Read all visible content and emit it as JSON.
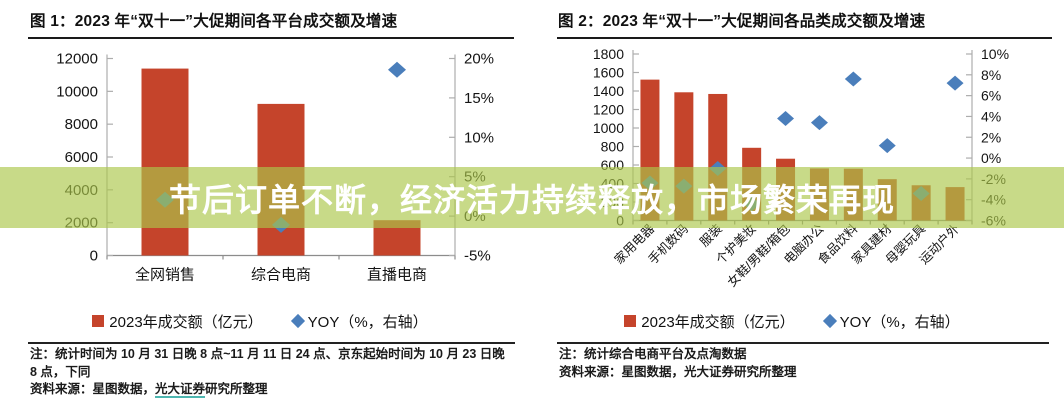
{
  "banner": {
    "text": "节后订单不断，经济活力持续释放，市场繁荣再现",
    "background_color": "#abc74a",
    "background_opacity": 0.66,
    "text_color": "#ffffff"
  },
  "figures": [
    {
      "note": "注：统计时间为 10 月 31 日晚 8 点~11 月 11 日 24 点、京东起始时间为 10 月 23 日晚 8 点，下同",
      "source_prefix": "资料来源：星图数据，",
      "source_underlined": "光大证券",
      "source_suffix": "研究所整理",
      "underline_color": "#4db6b0"
    },
    {
      "note": "注：统计综合电商平台及点淘数据",
      "source_prefix": "资料来源：星图数据，光大证券研究所整理",
      "source_underlined": "",
      "source_suffix": ""
    }
  ],
  "chart_data": [
    {
      "type": "bar",
      "title": "图 1：2023 年“双十一”大促期间各平台成交额及增速",
      "categories": [
        "全网销售",
        "综合电商",
        "直播电商"
      ],
      "series": [
        {
          "name": "2023年成交额（亿元）",
          "type": "bar",
          "axis": "left",
          "color": "#c5442b",
          "values": [
            11386,
            9235,
            2151
          ]
        },
        {
          "name": "YOY（%，右轴）",
          "type": "diamond",
          "axis": "right",
          "color": "#4a7ebb",
          "values": [
            2.08,
            -1.12,
            18.58
          ]
        }
      ],
      "left_axis": {
        "min": 0,
        "max": 12000,
        "step": 2000,
        "suffix": ""
      },
      "right_axis": {
        "min": -5,
        "max": 20,
        "step": 5,
        "suffix": "%"
      },
      "legend_position": "bottom",
      "grid": false
    },
    {
      "type": "bar",
      "title": "图 2：2023 年“双十一”大促期间各品类成交额及增速",
      "categories": [
        "家用电器",
        "手机数码",
        "服装",
        "个护美妆",
        "女鞋/男鞋/箱包",
        "电脑办公",
        "食品饮料",
        "家具建材",
        "母婴玩具",
        "运动户外"
      ],
      "series": [
        {
          "name": "2023年成交额（亿元）",
          "type": "bar",
          "axis": "left",
          "color": "#c5442b",
          "values": [
            1523,
            1386,
            1368,
            786,
            668,
            563,
            560,
            447,
            381,
            361
          ]
        },
        {
          "name": "YOY（%，右轴）",
          "type": "diamond",
          "axis": "right",
          "color": "#4a7ebb",
          "values": [
            -2.4,
            -2.7,
            -1.0,
            -4.4,
            3.8,
            3.4,
            7.6,
            1.2,
            -3.4,
            7.2
          ]
        }
      ],
      "left_axis": {
        "min": 0,
        "max": 1800,
        "step": 200,
        "suffix": ""
      },
      "right_axis": {
        "min": -6,
        "max": 10,
        "step": 2,
        "suffix": "%"
      },
      "legend_position": "bottom",
      "grid": false
    }
  ]
}
